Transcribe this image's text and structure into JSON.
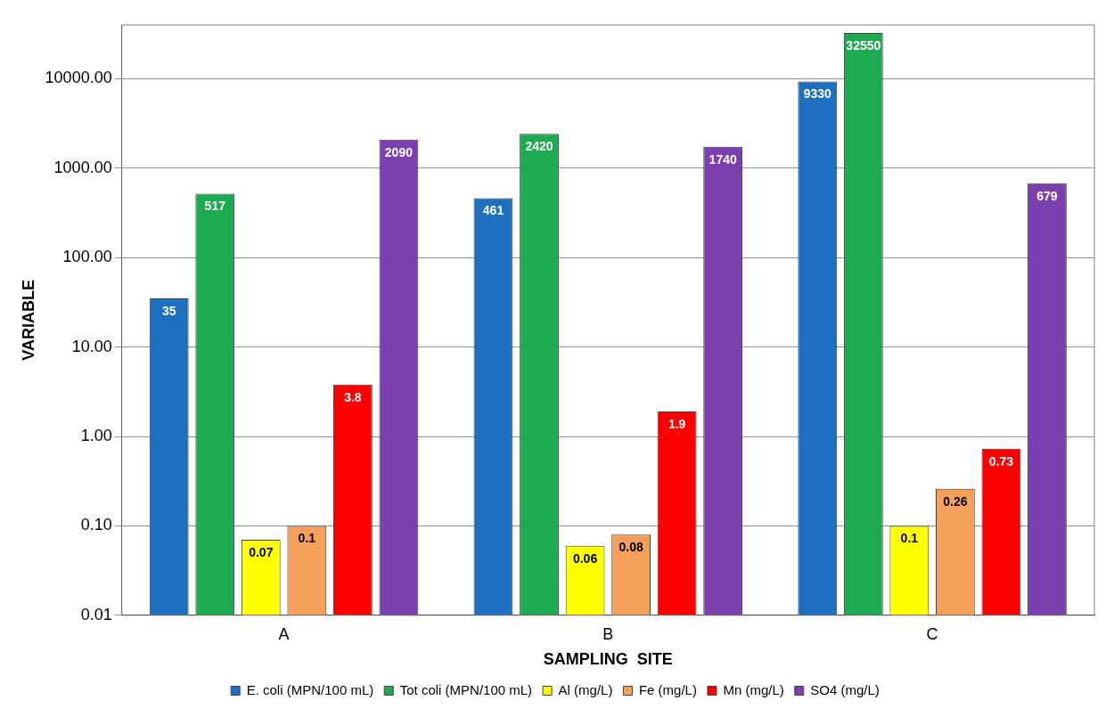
{
  "chart_data": {
    "type": "bar",
    "xlabel": "SAMPLING  SITE",
    "ylabel": "VARIABLE",
    "categories": [
      "A",
      "B",
      "C"
    ],
    "series": [
      {
        "name": "E. coli (MPN/100 mL)",
        "color": "#1f6fc0",
        "values": [
          35,
          461,
          9330
        ]
      },
      {
        "name": "Tot coli (MPN/100 mL)",
        "color": "#1daa50",
        "values": [
          517,
          2420,
          32550
        ]
      },
      {
        "name": "Al (mg/L)",
        "color": "#ffff00",
        "values": [
          0.07,
          0.06,
          0.1
        ]
      },
      {
        "name": "Fe (mg/L)",
        "color": "#f5a05a",
        "values": [
          0.1,
          0.08,
          0.26
        ]
      },
      {
        "name": "Mn (mg/L)",
        "color": "#ff0000",
        "values": [
          3.8,
          1.9,
          0.73
        ]
      },
      {
        "name": "SO4 (mg/L)",
        "color": "#7b3fb0",
        "values": [
          2090,
          1740,
          679
        ]
      }
    ],
    "log": true,
    "ylim": [
      0.01,
      40000
    ],
    "yticks": [
      0.01,
      {
        "value": 0.1,
        "label": "0.10"
      },
      {
        "value": 1,
        "label": "1.00"
      },
      {
        "value": 10,
        "label": "10.00"
      },
      {
        "value": 100,
        "label": "100.00"
      },
      {
        "value": 1000,
        "label": "1000.00"
      },
      {
        "value": 10000,
        "label": "10000.00"
      }
    ],
    "grid": "y",
    "legend": "bottom",
    "data_labels": true
  }
}
